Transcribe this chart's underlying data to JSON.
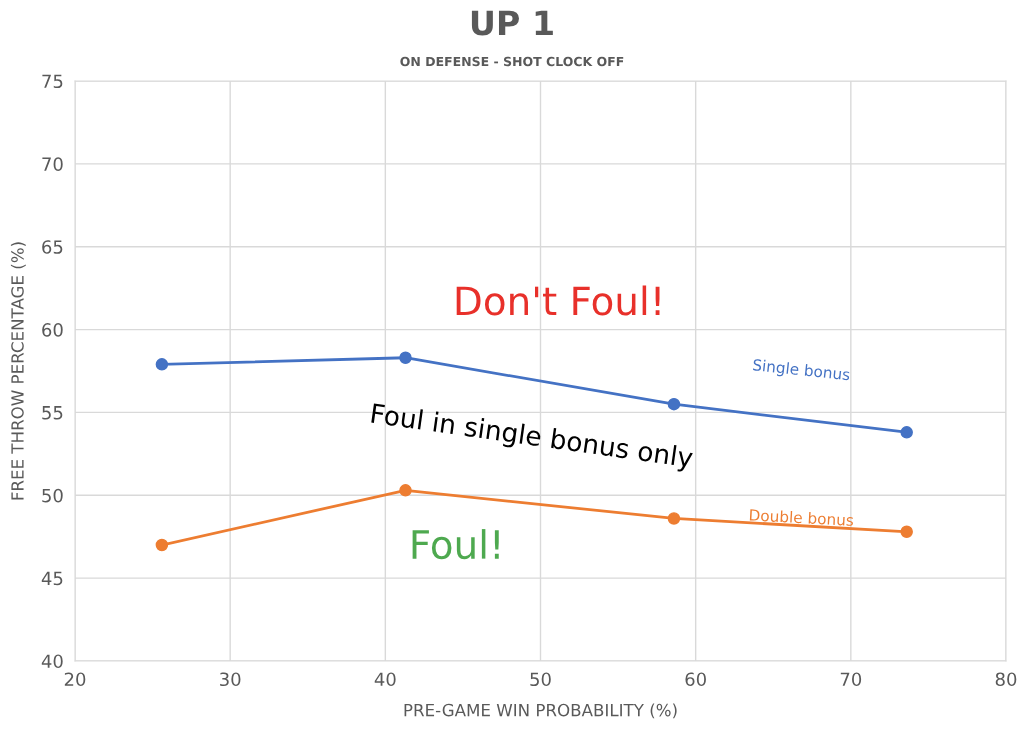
{
  "chart_data": {
    "type": "line",
    "title": "UP 1",
    "subtitle": "ON DEFENSE - SHOT CLOCK OFF",
    "xlabel": "PRE-GAME WIN PROBABILITY (%)",
    "ylabel": "FREE THROW PERCENTAGE (%)",
    "x": [
      25.6,
      41.3,
      58.6,
      73.6
    ],
    "series": [
      {
        "name": "Single bonus",
        "color": "#4472c4",
        "values": [
          57.9,
          58.3,
          55.5,
          53.8
        ]
      },
      {
        "name": "Double bonus",
        "color": "#ed7d31",
        "values": [
          47.0,
          50.3,
          48.6,
          47.8
        ]
      }
    ],
    "xlim": [
      20,
      80
    ],
    "xticks": [
      20,
      30,
      40,
      50,
      60,
      70,
      80
    ],
    "ylim": [
      40,
      75
    ],
    "yticks": [
      40,
      45,
      50,
      55,
      60,
      65,
      70,
      75
    ],
    "grid": true,
    "marker": "circle",
    "line_style": "solid",
    "annotations": [
      "Don't Foul!",
      "Foul in single bonus only",
      "Foul!"
    ]
  }
}
